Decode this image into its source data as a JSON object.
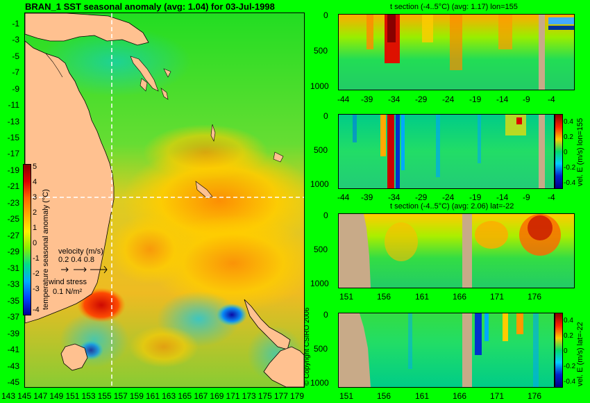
{
  "main_title": "BRAN_1  SST seasonal anomaly  (avg: 1.04) for 03-Jul-1998",
  "map": {
    "lat_ticks": [
      "-1",
      "-3",
      "-5",
      "-7",
      "-9",
      "-11",
      "-13",
      "-15",
      "-17",
      "-19",
      "-21",
      "-23",
      "-25",
      "-27",
      "-29",
      "-31",
      "-33",
      "-35",
      "-37",
      "-39",
      "-41",
      "-43",
      "-45"
    ],
    "lon_ticks": [
      "143",
      "145",
      "147",
      "149",
      "151",
      "153",
      "155",
      "157",
      "159",
      "161",
      "163",
      "165",
      "167",
      "169",
      "171",
      "173",
      "175",
      "177",
      "179"
    ],
    "colorbar": {
      "label": "temperature seasonal anomaly (°C)",
      "ticks": [
        "5",
        "4",
        "3",
        "2",
        "1",
        "0",
        "-1",
        "-2",
        "-3",
        "-4"
      ]
    },
    "velocity_legend": {
      "title": "velocity (m/s)",
      "values": "0.2 0.4 0.8"
    },
    "wind_legend": {
      "title": "wind stress",
      "value": "0.1 N/m²"
    },
    "copyright": "© Copyright CSIRO 2006"
  },
  "panels": [
    {
      "title": "t section (-4..5°C) (avg: 1.17) lon=155",
      "y_ticks": [
        "0",
        "500",
        "1000"
      ],
      "x_ticks": [
        "-44",
        "-39",
        "-34",
        "-29",
        "-24",
        "-19",
        "-14",
        "-9",
        "-4"
      ]
    },
    {
      "title": "",
      "y_ticks": [
        "0",
        "500",
        "1000"
      ],
      "x_ticks": [
        "-44",
        "-39",
        "-34",
        "-29",
        "-24",
        "-19",
        "-14",
        "-9",
        "-4"
      ],
      "side_label": "vel. E (m/s) lon=155",
      "colorbar_ticks": [
        "0.4",
        "0.2",
        "0",
        "-0.2",
        "-0.4"
      ]
    },
    {
      "title": "t section (-4..5°C) (avg: 2.06) lat=-22",
      "y_ticks": [
        "0",
        "500",
        "1000"
      ],
      "x_ticks": [
        "151",
        "156",
        "161",
        "166",
        "171",
        "176"
      ]
    },
    {
      "title": "",
      "y_ticks": [
        "0",
        "500",
        "1000"
      ],
      "x_ticks": [
        "151",
        "156",
        "161",
        "166",
        "171",
        "176"
      ],
      "side_label": "vel. E (m/s) lat=-22",
      "colorbar_ticks": [
        "0.4",
        "0.2",
        "0",
        "-0.2",
        "-0.4"
      ]
    }
  ]
}
